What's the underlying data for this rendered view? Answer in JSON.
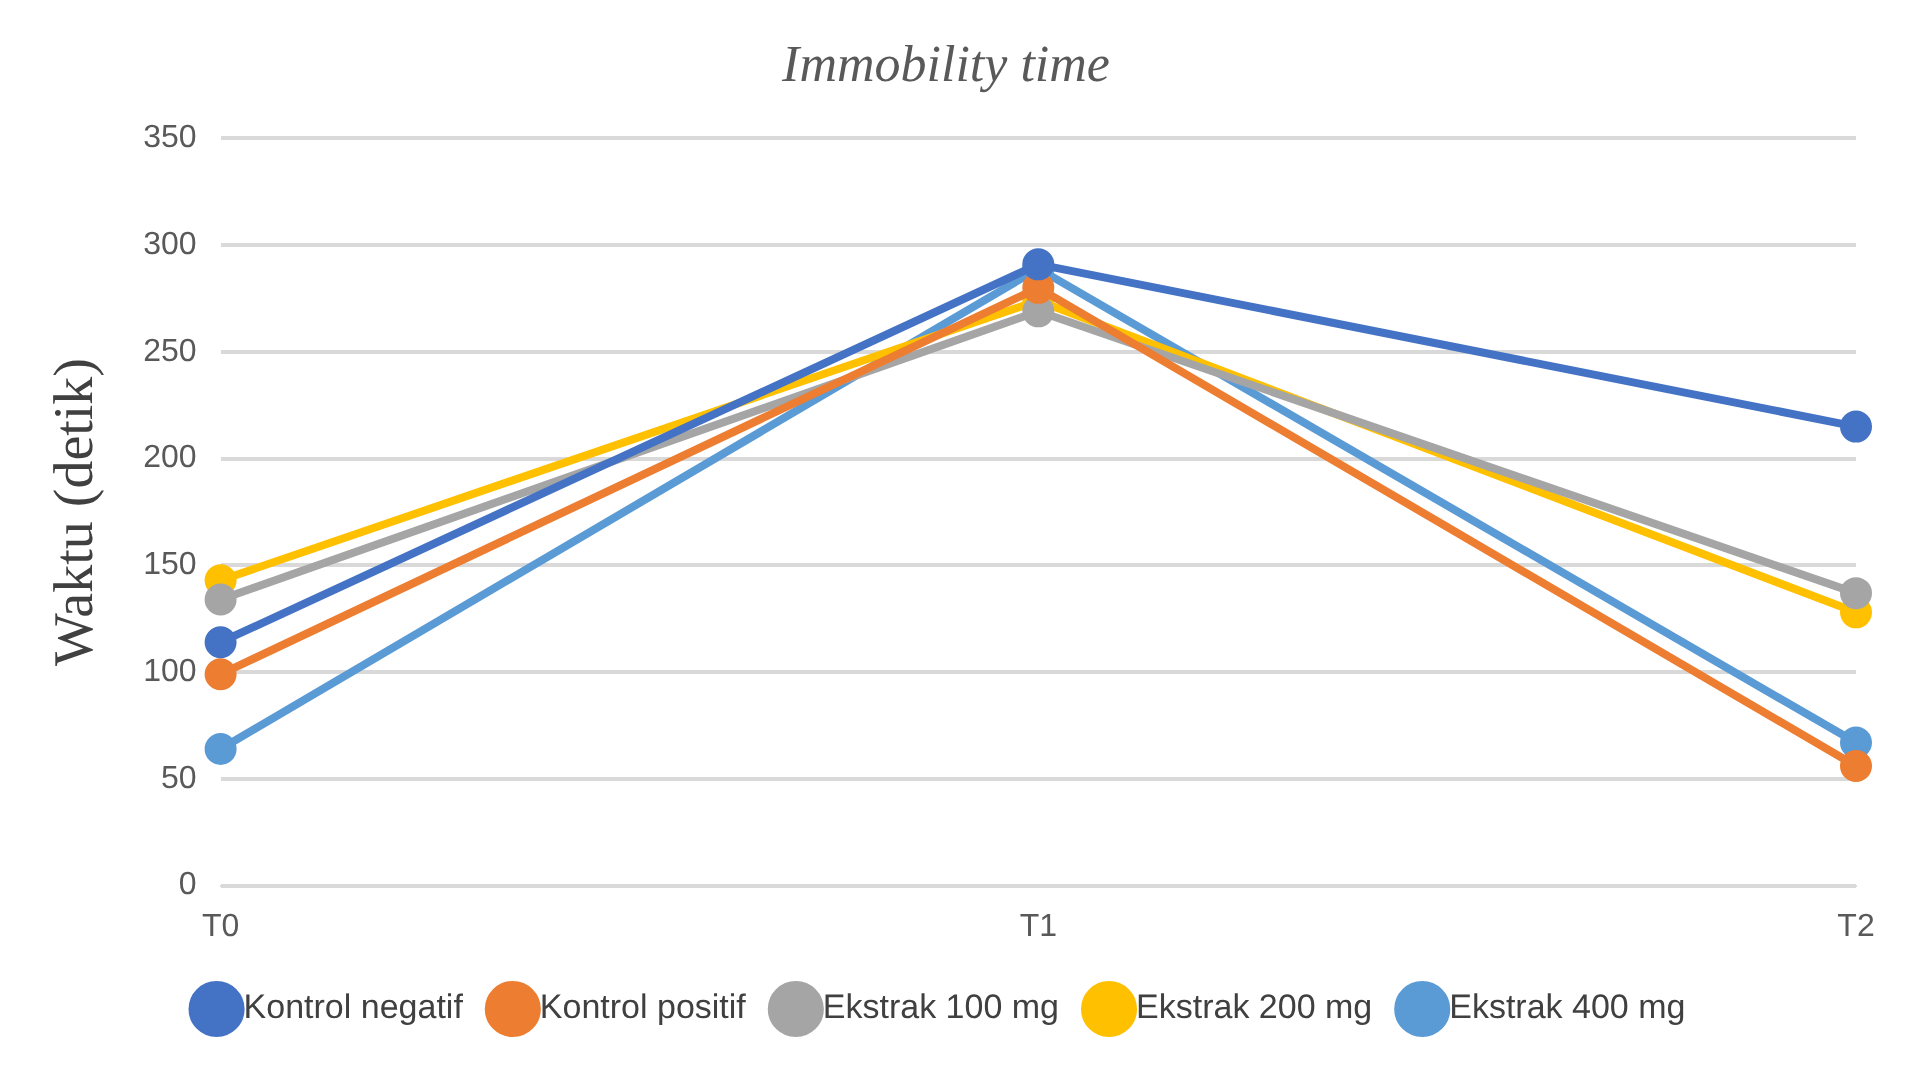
{
  "chart_data": {
    "type": "line",
    "title": "Immobility time",
    "ylabel": "Waktu (detik)",
    "categories": [
      "T0",
      "T1",
      "T2"
    ],
    "series": [
      {
        "name": "Kontrol negatif",
        "color": "#4472c4",
        "values": [
          114,
          291,
          215
        ]
      },
      {
        "name": "Kontrol positif",
        "color": "#ed7d31",
        "values": [
          99,
          280,
          56
        ]
      },
      {
        "name": "Ekstrak 100 mg",
        "color": "#a5a5a5",
        "values": [
          134,
          269,
          137
        ]
      },
      {
        "name": "Ekstrak 200 mg",
        "color": "#ffc000",
        "values": [
          143,
          274,
          128
        ]
      },
      {
        "name": "Ekstrak 400 mg",
        "color": "#5b9bd5",
        "values": [
          64,
          289,
          67
        ]
      }
    ],
    "ylim": [
      0,
      350
    ],
    "yticks": [
      0,
      50,
      100,
      150,
      200,
      250,
      300,
      350
    ],
    "grid": "y",
    "legend": "bottom",
    "marker": "circle",
    "line_style": "solid"
  }
}
